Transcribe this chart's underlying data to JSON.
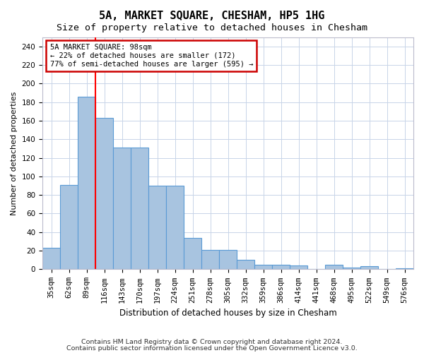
{
  "title": "5A, MARKET SQUARE, CHESHAM, HP5 1HG",
  "subtitle": "Size of property relative to detached houses in Chesham",
  "xlabel": "Distribution of detached houses by size in Chesham",
  "ylabel": "Number of detached properties",
  "categories": [
    "35sqm",
    "62sqm",
    "89sqm",
    "116sqm",
    "143sqm",
    "170sqm",
    "197sqm",
    "224sqm",
    "251sqm",
    "278sqm",
    "305sqm",
    "332sqm",
    "359sqm",
    "386sqm",
    "414sqm",
    "441sqm",
    "468sqm",
    "495sqm",
    "522sqm",
    "549sqm",
    "576sqm"
  ],
  "values": [
    23,
    91,
    186,
    163,
    131,
    131,
    90,
    90,
    34,
    21,
    21,
    10,
    5,
    5,
    4,
    0,
    5,
    2,
    3,
    0,
    1
  ],
  "bar_color": "#a8c4e0",
  "bar_edge_color": "#5b9bd5",
  "bar_edge_width": 0.8,
  "annotation_title": "5A MARKET SQUARE: 98sqm",
  "annotation_line1": "← 22% of detached houses are smaller (172)",
  "annotation_line2": "77% of semi-detached houses are larger (595) →",
  "annotation_box_color": "#ffffff",
  "annotation_box_edge": "#cc0000",
  "footer1": "Contains HM Land Registry data © Crown copyright and database right 2024.",
  "footer2": "Contains public sector information licensed under the Open Government Licence v3.0.",
  "ylim": [
    0,
    250
  ],
  "yticks": [
    0,
    20,
    40,
    60,
    80,
    100,
    120,
    140,
    160,
    180,
    200,
    220,
    240
  ],
  "grid_color": "#c8d4e8",
  "title_fontsize": 11,
  "subtitle_fontsize": 9.5,
  "xlabel_fontsize": 8.5,
  "ylabel_fontsize": 8,
  "tick_fontsize": 7.5,
  "footer_fontsize": 6.8
}
